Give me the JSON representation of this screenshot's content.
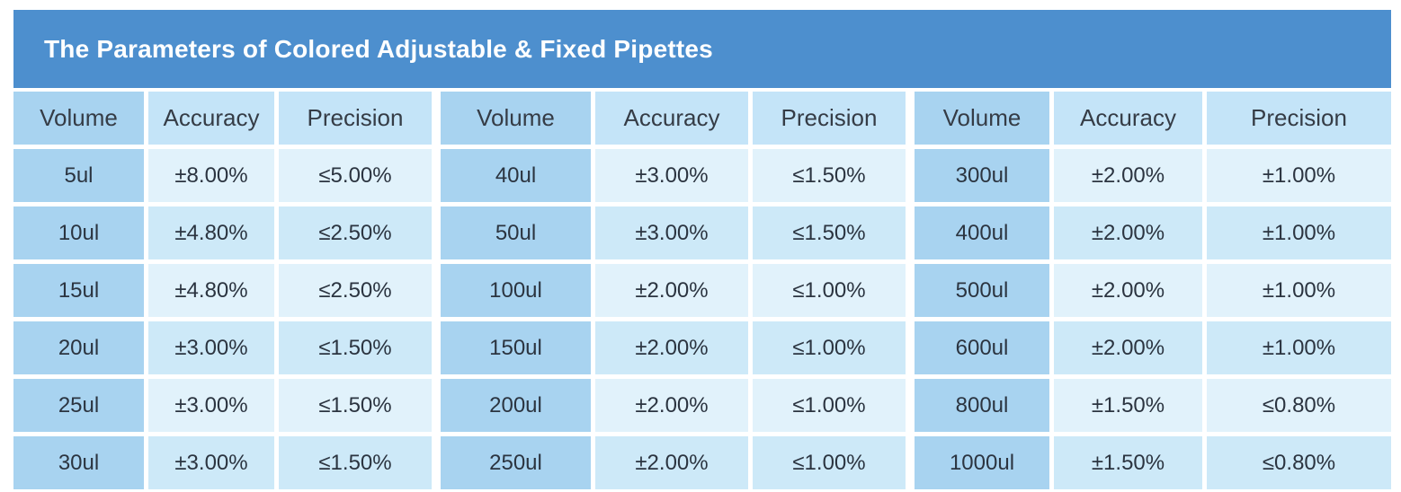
{
  "title": "The Parameters of Colored Adjustable & Fixed Pipettes",
  "headers": [
    "Volume",
    "Accuracy",
    "Precision"
  ],
  "blocks": [
    {
      "rows": [
        {
          "volume": "5ul",
          "accuracy": "±8.00%",
          "precision": "≤5.00%"
        },
        {
          "volume": "10ul",
          "accuracy": "±4.80%",
          "precision": "≤2.50%"
        },
        {
          "volume": "15ul",
          "accuracy": "±4.80%",
          "precision": "≤2.50%"
        },
        {
          "volume": "20ul",
          "accuracy": "±3.00%",
          "precision": "≤1.50%"
        },
        {
          "volume": "25ul",
          "accuracy": "±3.00%",
          "precision": "≤1.50%"
        },
        {
          "volume": "30ul",
          "accuracy": "±3.00%",
          "precision": "≤1.50%"
        }
      ]
    },
    {
      "rows": [
        {
          "volume": "40ul",
          "accuracy": "±3.00%",
          "precision": "≤1.50%"
        },
        {
          "volume": "50ul",
          "accuracy": "±3.00%",
          "precision": "≤1.50%"
        },
        {
          "volume": "100ul",
          "accuracy": "±2.00%",
          "precision": "≤1.00%"
        },
        {
          "volume": "150ul",
          "accuracy": "±2.00%",
          "precision": "≤1.00%"
        },
        {
          "volume": "200ul",
          "accuracy": "±2.00%",
          "precision": "≤1.00%"
        },
        {
          "volume": "250ul",
          "accuracy": "±2.00%",
          "precision": "≤1.00%"
        }
      ]
    },
    {
      "rows": [
        {
          "volume": "300ul",
          "accuracy": "±2.00%",
          "precision": "±1.00%"
        },
        {
          "volume": "400ul",
          "accuracy": "±2.00%",
          "precision": "±1.00%"
        },
        {
          "volume": "500ul",
          "accuracy": "±2.00%",
          "precision": "±1.00%"
        },
        {
          "volume": "600ul",
          "accuracy": "±2.00%",
          "precision": "±1.00%"
        },
        {
          "volume": "800ul",
          "accuracy": "±1.50%",
          "precision": "≤0.80%"
        },
        {
          "volume": "1000ul",
          "accuracy": "±1.50%",
          "precision": "≤0.80%"
        }
      ]
    }
  ],
  "colors": {
    "title_bar": "#4d8fce",
    "volume_cell": "#a8d3f0",
    "header_cell": "#c4e4f8",
    "data_cell": "#d6edf9"
  }
}
